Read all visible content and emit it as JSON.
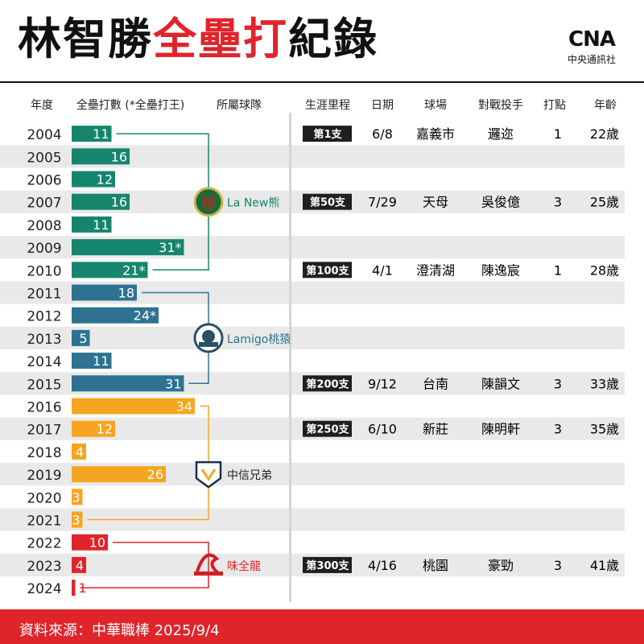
{
  "title": {
    "part1": "林智勝",
    "part2": "全壘打",
    "part3": "紀錄"
  },
  "logo": {
    "mark": "CNA",
    "name": "中央通訊社"
  },
  "headers": [
    "年度",
    "全壘打數 (*全壘打王)",
    "所屬球隊",
    "生涯里程",
    "日期",
    "球場",
    "對戰投手",
    "打點",
    "年齡"
  ],
  "colors": {
    "lanew": "#16856e",
    "lamigo": "#2e7291",
    "brothers": "#f6a520",
    "dragons": "#e0242b",
    "band": "#e9e9e9",
    "accent": "#e0242b"
  },
  "chart_data": {
    "type": "bar",
    "title": "林智勝全壘打紀錄",
    "xlabel": "全壘打數 (*全壘打王)",
    "ylabel": "年度",
    "orientation": "horizontal",
    "xlim": [
      0,
      45
    ],
    "categories": [
      "2004",
      "2005",
      "2006",
      "2007",
      "2008",
      "2009",
      "2010",
      "2011",
      "2012",
      "2013",
      "2014",
      "2015",
      "2016",
      "2017",
      "2018",
      "2019",
      "2020",
      "2021",
      "2022",
      "2023",
      "2024"
    ],
    "values": [
      11,
      16,
      12,
      16,
      11,
      31,
      21,
      18,
      24,
      5,
      11,
      31,
      34,
      12,
      4,
      26,
      3,
      3,
      10,
      4,
      1
    ],
    "labels": [
      "11",
      "16",
      "12",
      "16",
      "11",
      "31*",
      "21*",
      "18",
      "24*",
      "5",
      "11",
      "31",
      "34",
      "12",
      "4",
      "26",
      "3",
      "3",
      "10",
      "4",
      "1"
    ],
    "team_of_year": [
      "lanew",
      "lanew",
      "lanew",
      "lanew",
      "lanew",
      "lanew",
      "lanew",
      "lamigo",
      "lamigo",
      "lamigo",
      "lamigo",
      "lamigo",
      "brothers",
      "brothers",
      "brothers",
      "brothers",
      "brothers",
      "brothers",
      "dragons",
      "dragons",
      "dragons"
    ],
    "teams": [
      {
        "key": "lanew",
        "name": "La New熊",
        "from": 0,
        "to": 6,
        "label_row": 3
      },
      {
        "key": "lamigo",
        "name": "Lamigo桃猿",
        "from": 7,
        "to": 11,
        "label_row": 9
      },
      {
        "key": "brothers",
        "name": "中信兄弟",
        "from": 12,
        "to": 17,
        "label_row": 15
      },
      {
        "key": "dragons",
        "name": "味全龍",
        "from": 18,
        "to": 20,
        "label_row": 19
      }
    ],
    "milestones": [
      {
        "row": 0,
        "hr": "第1支",
        "date": "6/8",
        "park": "嘉義市",
        "pitcher": "邏迩",
        "rbi": "1",
        "age": "22歲"
      },
      {
        "row": 3,
        "hr": "第50支",
        "date": "7/29",
        "park": "天母",
        "pitcher": "吳俊億",
        "rbi": "3",
        "age": "25歲"
      },
      {
        "row": 6,
        "hr": "第100支",
        "date": "4/1",
        "park": "澄清湖",
        "pitcher": "陳逸宸",
        "rbi": "1",
        "age": "28歲"
      },
      {
        "row": 11,
        "hr": "第200支",
        "date": "9/12",
        "park": "台南",
        "pitcher": "陳韻文",
        "rbi": "3",
        "age": "33歲"
      },
      {
        "row": 13,
        "hr": "第250支",
        "date": "6/10",
        "park": "新莊",
        "pitcher": "陳明軒",
        "rbi": "3",
        "age": "35歲"
      },
      {
        "row": 19,
        "hr": "第300支",
        "date": "4/16",
        "park": "桃園",
        "pitcher": "豪勁",
        "rbi": "3",
        "age": "41歲"
      }
    ]
  },
  "footer": {
    "source": "資料來源：中華職棒 2025/9/4"
  }
}
